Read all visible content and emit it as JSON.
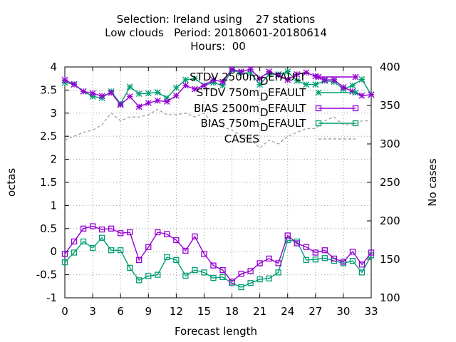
{
  "chart_data": {
    "type": "line",
    "title_lines": [
      "Selection: Ireland using    27 stations",
      "Low clouds   Period: 20180601-20180614",
      "Hours:  00"
    ],
    "xlabel": "Forecast length",
    "ylabel": "octas",
    "y2label": "No cases",
    "xlim": [
      0,
      33
    ],
    "ylim": [
      -1,
      4
    ],
    "y2lim": [
      100,
      400
    ],
    "xticks": [
      "0",
      "3",
      "6",
      "9",
      "12",
      "15",
      "18",
      "21",
      "24",
      "27",
      "30",
      "33"
    ],
    "yticks": [
      "-1",
      "-0.5",
      "0",
      "0.5",
      "1",
      "1.5",
      "2",
      "2.5",
      "3",
      "3.5",
      "4"
    ],
    "y2ticks": [
      "100",
      "150",
      "200",
      "250",
      "300",
      "350",
      "400"
    ],
    "grid": true,
    "legend_position": "top-right",
    "x": [
      0,
      1,
      2,
      3,
      4,
      5,
      6,
      7,
      8,
      9,
      10,
      11,
      12,
      13,
      14,
      15,
      16,
      17,
      18,
      19,
      20,
      21,
      22,
      23,
      24,
      25,
      26,
      27,
      28,
      29,
      30,
      31,
      32,
      33
    ],
    "series": [
      {
        "name": "STDV 2500m",
        "name_suffix": "DEFAULT",
        "color": "#9400d3",
        "marker": "x-star",
        "axis": "y1",
        "values": [
          3.72,
          3.62,
          3.47,
          3.43,
          3.37,
          3.44,
          3.18,
          3.36,
          3.14,
          3.22,
          3.27,
          3.25,
          3.38,
          3.6,
          3.52,
          3.6,
          3.72,
          3.68,
          3.95,
          3.9,
          3.95,
          3.75,
          3.9,
          3.82,
          3.72,
          3.84,
          3.88,
          3.8,
          3.72,
          3.72,
          3.56,
          3.47,
          3.38,
          3.4
        ]
      },
      {
        "name": "STDV 750m",
        "name_suffix": "DEFAULT",
        "color": "#009e73",
        "marker": "x-star",
        "axis": "y1",
        "values": [
          3.66,
          3.63,
          3.47,
          3.36,
          3.33,
          3.47,
          3.2,
          3.57,
          3.42,
          3.43,
          3.45,
          3.33,
          3.55,
          3.72,
          3.75,
          3.6,
          3.66,
          3.6,
          3.93,
          3.87,
          3.87,
          3.62,
          3.84,
          3.84,
          3.9,
          3.7,
          3.62,
          3.62,
          3.7,
          3.68,
          3.52,
          3.6,
          3.73,
          3.4
        ]
      },
      {
        "name": "BIAS 2500m",
        "name_suffix": "DEFAULT",
        "color": "#9400d3",
        "marker": "square",
        "axis": "y1",
        "values": [
          -0.05,
          0.22,
          0.5,
          0.55,
          0.48,
          0.5,
          0.4,
          0.42,
          -0.18,
          0.1,
          0.42,
          0.38,
          0.25,
          0.02,
          0.33,
          -0.05,
          -0.3,
          -0.4,
          -0.65,
          -0.48,
          -0.42,
          -0.25,
          -0.15,
          -0.25,
          0.35,
          0.18,
          0.1,
          -0.02,
          0.03,
          -0.15,
          -0.22,
          0.0,
          -0.28,
          -0.02
        ]
      },
      {
        "name": "BIAS 750m",
        "name_suffix": "DEFAULT",
        "color": "#009e73",
        "marker": "square",
        "axis": "y1",
        "values": [
          -0.23,
          -0.02,
          0.22,
          0.08,
          0.3,
          0.03,
          0.03,
          -0.35,
          -0.62,
          -0.53,
          -0.5,
          -0.12,
          -0.18,
          -0.52,
          -0.4,
          -0.45,
          -0.57,
          -0.55,
          -0.68,
          -0.77,
          -0.68,
          -0.6,
          -0.58,
          -0.45,
          0.25,
          0.22,
          -0.18,
          -0.17,
          -0.14,
          -0.2,
          -0.25,
          -0.2,
          -0.45,
          -0.08
        ]
      },
      {
        "name": "CASES",
        "name_suffix": "",
        "color": "#a0a0a0",
        "marker": "none",
        "dashed": true,
        "axis": "y2",
        "values": [
          305,
          310,
          315,
          318,
          325,
          340,
          330,
          335,
          335,
          338,
          345,
          338,
          338,
          340,
          335,
          340,
          325,
          322,
          318,
          310,
          305,
          295,
          305,
          300,
          310,
          315,
          320,
          320,
          330,
          335,
          325,
          325,
          330,
          330
        ]
      }
    ]
  }
}
